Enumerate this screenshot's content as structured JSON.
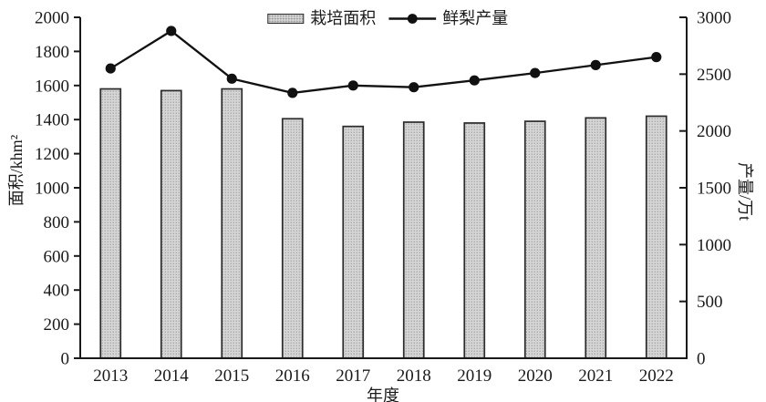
{
  "figure": {
    "background": "#ffffff",
    "text_color": "#1a1a1a"
  },
  "chart_data": {
    "type": "bar+line",
    "categories": [
      "2013",
      "2014",
      "2015",
      "2016",
      "2017",
      "2018",
      "2019",
      "2020",
      "2021",
      "2022"
    ],
    "series": [
      {
        "name": "栽培面积",
        "type": "bar",
        "axis": "left",
        "values": [
          1580,
          1570,
          1580,
          1405,
          1360,
          1385,
          1380,
          1390,
          1410,
          1420
        ]
      },
      {
        "name": "鲜梨产量",
        "type": "line",
        "axis": "right",
        "values": [
          2550,
          2880,
          2460,
          2335,
          2400,
          2385,
          2445,
          2510,
          2580,
          2650
        ]
      }
    ],
    "xlabel": "年度",
    "left_axis": {
      "label": "面积/khm²",
      "min": 0,
      "max": 2000,
      "step": 200
    },
    "right_axis": {
      "label": "产量/万t",
      "min": 0,
      "max": 3000,
      "step": 500
    },
    "grid": false,
    "legend_position": "top-center",
    "colors": {
      "bar_fill": "#d6d6d6",
      "bar_dot": "#9c9c9c",
      "bar_border": "#2b2b2b",
      "line": "#111111",
      "axis": "#1a1a1a"
    }
  }
}
